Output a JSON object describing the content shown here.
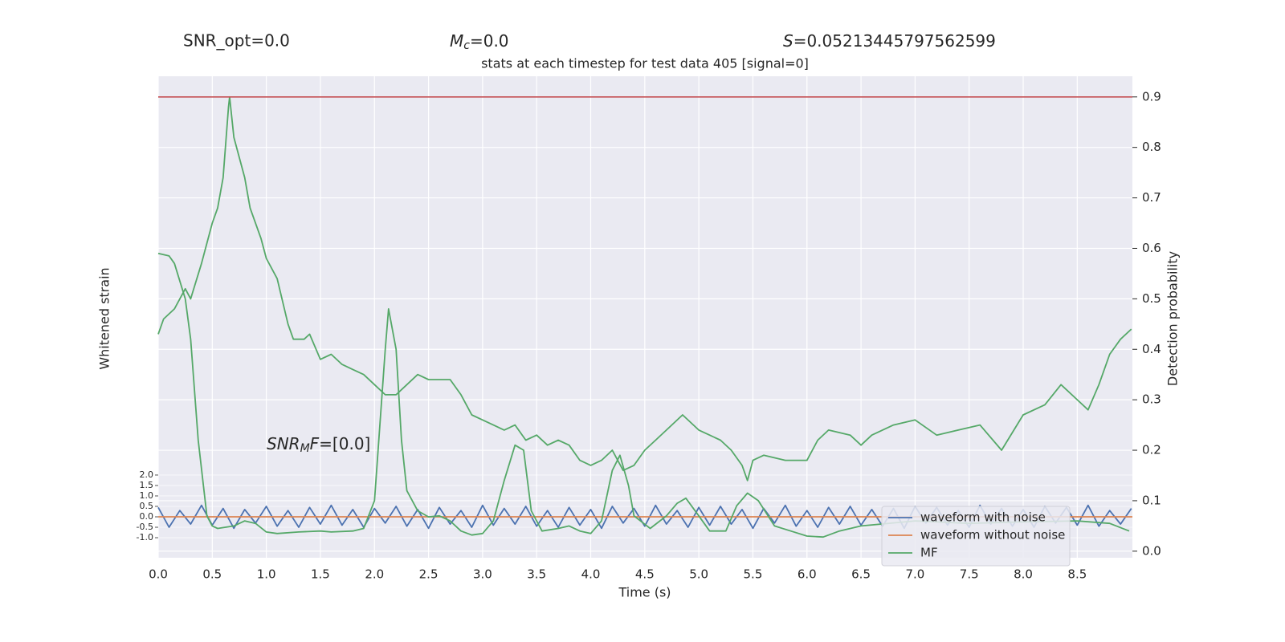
{
  "chart_data": {
    "type": "line",
    "header": {
      "snr_opt": "SNR_opt=0.0",
      "mc": {
        "base": "M",
        "sub": "c",
        "rest": "=0.0"
      },
      "s": {
        "base": "S",
        "rest": "=0.05213445797562599"
      }
    },
    "title": "stats at each timestep for test data 405 [signal=0]",
    "annotation": {
      "base": "SNR",
      "sub": "M",
      "tail": "F",
      "rest": "=[0.0]"
    },
    "xlabel": "Time (s)",
    "ylabel": "Whitened strain",
    "y2label": "Detection probability",
    "xlim": [
      0,
      9.01
    ],
    "xticks": [
      {
        "value": 0,
        "label": "0.0"
      },
      0.5,
      {
        "value": 1,
        "label": "1.0"
      },
      1.5,
      {
        "value": 2,
        "label": "2.0"
      },
      2.5,
      {
        "value": 3,
        "label": "3.0"
      },
      3.5,
      {
        "value": 4,
        "label": "4.0"
      },
      4.5,
      {
        "value": 5,
        "label": "5.0"
      },
      5.5,
      {
        "value": 6,
        "label": "6.0"
      },
      6.5,
      {
        "value": 7,
        "label": "7.0"
      },
      7.5,
      {
        "value": 8,
        "label": "8.0"
      },
      8.5
    ],
    "ylim": [
      -1.96,
      21.1
    ],
    "yticks": [
      {
        "value": -1,
        "label": "-1.0"
      },
      -0.5,
      {
        "value": 0,
        "label": "0.0"
      },
      0.5,
      {
        "value": 1,
        "label": "1.0"
      },
      1.5,
      {
        "value": 2,
        "label": "2.0"
      }
    ],
    "y2lim": [
      -0.013,
      0.941
    ],
    "y2ticks": [
      {
        "value": 0,
        "label": "0.0"
      },
      0.1,
      0.2,
      0.3,
      0.4,
      0.5,
      0.6,
      0.7,
      0.8,
      0.9
    ],
    "grid": true,
    "legend": "lower right",
    "threshold": {
      "value": 0.9,
      "color": "#c44e52"
    },
    "series": [
      {
        "name": "waveform with noise",
        "color": "#4c72b0",
        "axis": "y",
        "x": [
          0,
          0.1,
          0.2,
          0.3,
          0.4,
          0.5,
          0.6,
          0.7,
          0.8,
          0.9,
          1,
          1.1,
          1.2,
          1.3,
          1.4,
          1.5,
          1.6,
          1.7,
          1.8,
          1.9,
          2,
          2.1,
          2.2,
          2.3,
          2.4,
          2.5,
          2.6,
          2.7,
          2.8,
          2.9,
          3,
          3.1,
          3.2,
          3.3,
          3.4,
          3.5,
          3.6,
          3.7,
          3.8,
          3.9,
          4,
          4.1,
          4.2,
          4.3,
          4.4,
          4.5,
          4.6,
          4.7,
          4.8,
          4.9,
          5,
          5.1,
          5.2,
          5.3,
          5.4,
          5.5,
          5.6,
          5.7,
          5.8,
          5.9,
          6,
          6.1,
          6.2,
          6.3,
          6.4,
          6.5,
          6.6,
          6.7,
          6.8,
          6.9,
          7,
          7.1,
          7.2,
          7.3,
          7.4,
          7.5,
          7.6,
          7.7,
          7.8,
          7.9,
          8,
          8.1,
          8.2,
          8.3,
          8.4,
          8.5,
          8.6,
          8.7,
          8.8,
          8.9,
          9
        ],
        "values": [
          0.45,
          -0.5,
          0.3,
          -0.35,
          0.55,
          -0.4,
          0.4,
          -0.55,
          0.35,
          -0.3,
          0.5,
          -0.45,
          0.3,
          -0.5,
          0.45,
          -0.35,
          0.55,
          -0.4,
          0.35,
          -0.5,
          0.4,
          -0.3,
          0.5,
          -0.45,
          0.35,
          -0.55,
          0.45,
          -0.35,
          0.3,
          -0.5,
          0.55,
          -0.4,
          0.4,
          -0.35,
          0.5,
          -0.45,
          0.3,
          -0.5,
          0.45,
          -0.4,
          0.35,
          -0.55,
          0.5,
          -0.3,
          0.4,
          -0.45,
          0.55,
          -0.35,
          0.3,
          -0.5,
          0.45,
          -0.4,
          0.5,
          -0.35,
          0.35,
          -0.55,
          0.4,
          -0.3,
          0.55,
          -0.45,
          0.3,
          -0.5,
          0.45,
          -0.35,
          0.5,
          -0.4,
          0.35,
          -0.45,
          0.4,
          -0.55,
          0.5,
          -0.3,
          0.45,
          -0.4,
          0.3,
          -0.5,
          0.55,
          -0.35,
          0.4,
          -0.45,
          0.35,
          -0.5,
          0.5,
          -0.3,
          0.45,
          -0.4,
          0.55,
          -0.45,
          0.3,
          -0.35,
          0.4
        ]
      },
      {
        "name": "waveform without noise",
        "color": "#dd8452",
        "axis": "y",
        "x": [
          0,
          9.01
        ],
        "values": [
          0,
          0
        ]
      },
      {
        "name": "MF",
        "color": "#55a868",
        "axis": "y2",
        "x": [
          0,
          0.1,
          0.15,
          0.25,
          0.3,
          0.37,
          0.45,
          0.5,
          0.55,
          0.7,
          0.8,
          0.9,
          1.0,
          1.1,
          1.3,
          1.5,
          1.6,
          1.8,
          1.9,
          2.0,
          2.05,
          2.1,
          2.13,
          2.2,
          2.25,
          2.3,
          2.4,
          2.5,
          2.6,
          2.7,
          2.8,
          2.9,
          3.0,
          3.1,
          3.2,
          3.3,
          3.38,
          3.45,
          3.55,
          3.7,
          3.8,
          3.9,
          4.0,
          4.1,
          4.2,
          4.27,
          4.35,
          4.4,
          4.55,
          4.7,
          4.8,
          4.88,
          5.0,
          5.1,
          5.25,
          5.35,
          5.45,
          5.55,
          5.7,
          5.85,
          6.0,
          6.15,
          6.3,
          6.5,
          7.0,
          7.5,
          8.0,
          8.5,
          8.8,
          8.98
        ],
        "values": [
          0.59,
          0.585,
          0.57,
          0.5,
          0.42,
          0.22,
          0.07,
          0.05,
          0.045,
          0.05,
          0.06,
          0.055,
          0.038,
          0.035,
          0.038,
          0.04,
          0.038,
          0.04,
          0.045,
          0.1,
          0.25,
          0.4,
          0.48,
          0.4,
          0.22,
          0.12,
          0.08,
          0.068,
          0.07,
          0.06,
          0.04,
          0.032,
          0.035,
          0.06,
          0.14,
          0.21,
          0.2,
          0.08,
          0.04,
          0.045,
          0.05,
          0.04,
          0.035,
          0.06,
          0.16,
          0.19,
          0.13,
          0.07,
          0.045,
          0.07,
          0.095,
          0.105,
          0.07,
          0.04,
          0.04,
          0.09,
          0.115,
          0.1,
          0.05,
          0.04,
          0.03,
          0.028,
          0.04,
          0.05,
          0.06,
          0.055,
          0.058,
          0.06,
          0.055,
          0.04
        ]
      },
      {
        "color": "#55a868",
        "axis": "y2",
        "x": [
          0,
          0.05,
          0.15,
          0.25,
          0.3,
          0.4,
          0.5,
          0.55,
          0.6,
          0.65,
          0.66,
          0.7,
          0.8,
          0.85,
          0.95,
          1.0,
          1.1,
          1.2,
          1.25,
          1.35,
          1.4,
          1.5,
          1.6,
          1.7,
          1.8,
          1.9,
          2.0,
          2.1,
          2.2,
          2.3,
          2.4,
          2.5,
          2.6,
          2.7,
          2.8,
          2.9,
          3.0,
          3.1,
          3.2,
          3.3,
          3.4,
          3.5,
          3.6,
          3.7,
          3.8,
          3.9,
          4.0,
          4.1,
          4.2,
          4.3,
          4.4,
          4.5,
          4.6,
          4.7,
          4.85,
          5.0,
          5.1,
          5.2,
          5.3,
          5.4,
          5.45,
          5.5,
          5.6,
          5.8,
          6.0,
          6.1,
          6.2,
          6.4,
          6.5,
          6.6,
          6.8,
          7.0,
          7.2,
          7.4,
          7.6,
          7.8,
          8.0,
          8.2,
          8.35,
          8.5,
          8.6,
          8.7,
          8.8,
          8.9,
          9.0
        ],
        "values": [
          0.43,
          0.46,
          0.48,
          0.52,
          0.5,
          0.57,
          0.65,
          0.68,
          0.74,
          0.88,
          0.9,
          0.82,
          0.74,
          0.68,
          0.62,
          0.58,
          0.54,
          0.45,
          0.42,
          0.42,
          0.43,
          0.38,
          0.39,
          0.37,
          0.36,
          0.35,
          0.33,
          0.31,
          0.31,
          0.33,
          0.35,
          0.34,
          0.34,
          0.34,
          0.31,
          0.27,
          0.26,
          0.25,
          0.24,
          0.25,
          0.22,
          0.23,
          0.21,
          0.22,
          0.21,
          0.18,
          0.17,
          0.18,
          0.2,
          0.16,
          0.17,
          0.2,
          0.22,
          0.24,
          0.27,
          0.24,
          0.23,
          0.22,
          0.2,
          0.17,
          0.14,
          0.18,
          0.19,
          0.18,
          0.18,
          0.22,
          0.24,
          0.23,
          0.21,
          0.23,
          0.25,
          0.26,
          0.23,
          0.24,
          0.25,
          0.2,
          0.27,
          0.29,
          0.33,
          0.3,
          0.28,
          0.33,
          0.39,
          0.42,
          0.44
        ]
      }
    ]
  }
}
